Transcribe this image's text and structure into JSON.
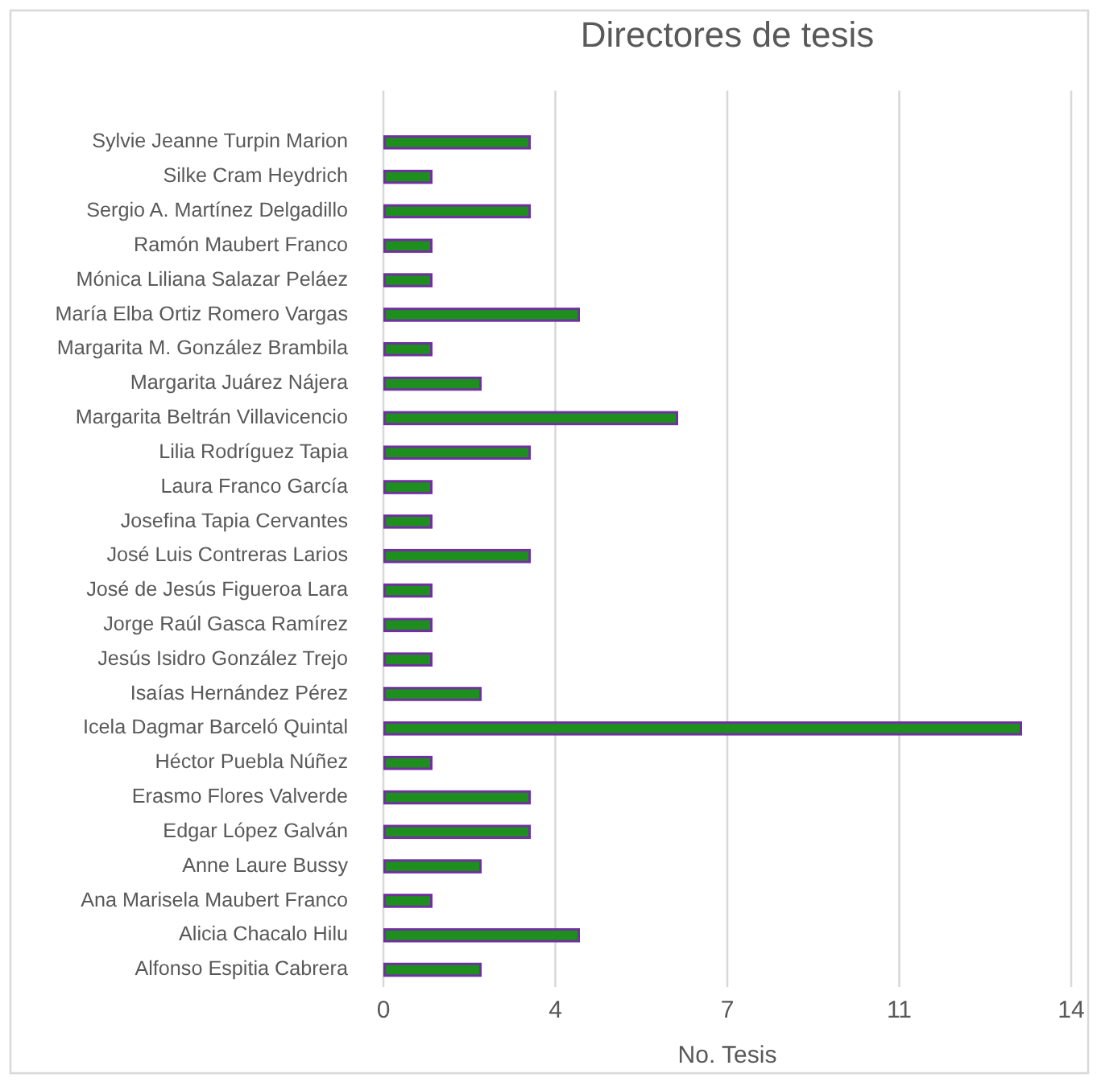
{
  "chart_data": {
    "type": "bar",
    "orientation": "horizontal",
    "title": "Directores de tesis",
    "xlabel": "No. Tesis",
    "categories": [
      "Sylvie Jeanne Turpin Marion",
      "Silke Cram Heydrich",
      "Sergio A. Martínez Delgadillo",
      "Ramón Maubert Franco",
      "Mónica Liliana Salazar Peláez",
      "María Elba Ortiz Romero Vargas",
      "Margarita M. González Brambila",
      "Margarita Juárez Nájera",
      "Margarita Beltrán Villavicencio",
      "Lilia Rodríguez Tapia",
      "Laura Franco García",
      "Josefina Tapia Cervantes",
      "José Luis Contreras Larios",
      "José de Jesús Figueroa Lara",
      "Jorge Raúl Gasca Ramírez",
      "Jesús Isidro González Trejo",
      "Isaías Hernández Pérez",
      "Icela Dagmar Barceló Quintal",
      "Héctor Puebla Núñez",
      "Erasmo Flores Valverde",
      "Edgar López Galván",
      "Anne Laure Bussy",
      "Ana Marisela Maubert Franco",
      "Alicia Chacalo Hilu",
      "Alfonso Espitia Cabrera"
    ],
    "values": [
      3,
      1,
      3,
      1,
      1,
      4,
      1,
      2,
      6,
      3,
      1,
      1,
      3,
      1,
      1,
      1,
      2,
      13,
      1,
      3,
      3,
      2,
      1,
      4,
      2
    ],
    "color": "#1e8f1e",
    "xlim": [
      0,
      14
    ],
    "xticks": [
      0,
      {
        "value": 3.5,
        "label": "4"
      },
      7,
      {
        "value": 10.5,
        "label": "11"
      },
      14
    ],
    "grid": "x"
  }
}
